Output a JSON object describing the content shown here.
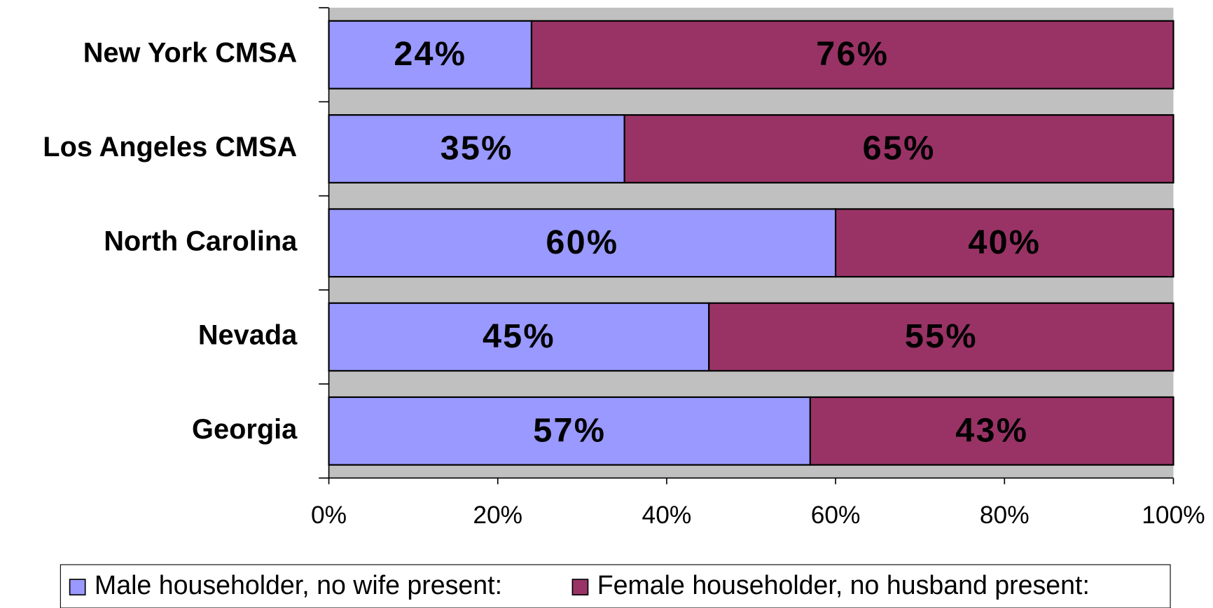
{
  "chart_data": {
    "type": "stacked_barh",
    "categories": [
      "New York CMSA",
      "Los Angeles CMSA",
      "North Carolina",
      "Nevada",
      "Georgia"
    ],
    "series": [
      {
        "name": "Male householder, no wife present:",
        "color": "#9999ff",
        "values": [
          24,
          35,
          60,
          45,
          57
        ],
        "value_labels": [
          "24%",
          "35%",
          "60%",
          "45%",
          "57%"
        ]
      },
      {
        "name": "Female householder, no husband present:",
        "color": "#993366",
        "values": [
          76,
          65,
          40,
          55,
          43
        ],
        "value_labels": [
          "76%",
          "65%",
          "40%",
          "55%",
          "43%"
        ]
      }
    ],
    "xlim": [
      0,
      100
    ],
    "xticks": [
      {
        "value": 0,
        "label": "0%"
      },
      {
        "value": 20,
        "label": "20%"
      },
      {
        "value": 40,
        "label": "40%"
      },
      {
        "value": 60,
        "label": "60%"
      },
      {
        "value": 80,
        "label": "80%"
      },
      {
        "value": 100,
        "label": "100%"
      }
    ],
    "legend": "bottom"
  }
}
